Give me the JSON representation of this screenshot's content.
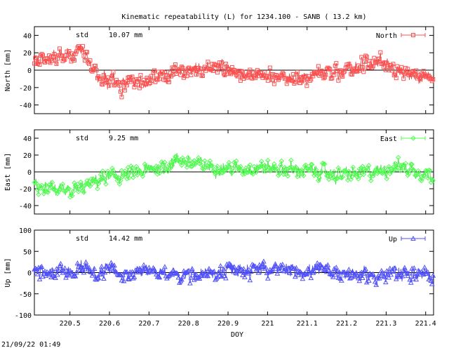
{
  "title": "Kinematic repeatability (L) for 1234.100 - SANB  ( 13.2 km)",
  "timestamp": "21/09/22 01:49",
  "chart_data": [
    {
      "type": "line",
      "component": "north",
      "legend": "North",
      "ylabel": "North [mm]",
      "std_label": "std",
      "std_value": "10.07 mm",
      "color": "#ff5050",
      "ylim": [
        -50,
        50
      ],
      "yticks": [
        -40,
        -20,
        0,
        20,
        40
      ],
      "xlim": [
        220.41,
        221.42
      ],
      "x": [
        220.41,
        220.45,
        220.49,
        220.53,
        220.55,
        220.57,
        220.6,
        220.63,
        220.66,
        220.7,
        220.74,
        220.78,
        220.83,
        220.88,
        220.93,
        220.98,
        221.03,
        221.08,
        221.13,
        221.18,
        221.23,
        221.28,
        221.33,
        221.37,
        221.42
      ],
      "values": [
        12,
        14,
        16,
        20,
        8,
        -8,
        -10,
        -18,
        -14,
        -10,
        -6,
        0,
        2,
        4,
        -2,
        -6,
        -8,
        -10,
        -6,
        -2,
        4,
        10,
        0,
        -10,
        -12
      ]
    },
    {
      "type": "line",
      "component": "east",
      "legend": "East",
      "ylabel": "East [mm]",
      "std_label": "std",
      "std_value": "9.25 mm",
      "color": "#50ff50",
      "ylim": [
        -50,
        50
      ],
      "yticks": [
        -40,
        -20,
        0,
        20,
        40
      ],
      "xlim": [
        220.41,
        221.42
      ],
      "x": [
        220.41,
        220.45,
        220.49,
        220.53,
        220.57,
        220.61,
        220.65,
        220.7,
        220.74,
        220.78,
        220.83,
        220.88,
        220.93,
        220.98,
        221.03,
        221.08,
        221.13,
        221.18,
        221.23,
        221.28,
        221.33,
        221.37,
        221.42
      ],
      "values": [
        -15,
        -18,
        -25,
        -20,
        -10,
        -5,
        -4,
        2,
        8,
        14,
        8,
        5,
        4,
        6,
        4,
        2,
        0,
        -4,
        -2,
        0,
        8,
        2,
        -4
      ]
    },
    {
      "type": "line",
      "component": "up",
      "legend": "Up",
      "ylabel": "Up [mm]",
      "std_label": "std",
      "std_value": "14.42 mm",
      "color": "#5050ff",
      "ylim": [
        -100,
        100
      ],
      "yticks": [
        -100,
        -50,
        0,
        50,
        100
      ],
      "xlim": [
        220.41,
        221.42
      ],
      "x": [
        220.41,
        220.45,
        220.49,
        220.53,
        220.57,
        220.61,
        220.65,
        220.7,
        220.74,
        220.78,
        220.83,
        220.88,
        220.93,
        220.98,
        221.03,
        221.08,
        221.13,
        221.18,
        221.23,
        221.28,
        221.33,
        221.37,
        221.42
      ],
      "values": [
        0,
        -5,
        5,
        10,
        2,
        8,
        -5,
        5,
        0,
        -10,
        -5,
        0,
        5,
        8,
        5,
        3,
        5,
        0,
        -5,
        -10,
        0,
        -5,
        -8
      ]
    }
  ],
  "xaxis": {
    "label": "DOY",
    "ticks": [
      "220.5",
      "220.6",
      "220.7",
      "220.8",
      "220.9",
      "221",
      "221.1",
      "221.2",
      "221.3",
      "221.4"
    ],
    "tick_values": [
      220.5,
      220.6,
      220.7,
      220.8,
      220.9,
      221.0,
      221.1,
      221.2,
      221.3,
      221.4
    ]
  }
}
